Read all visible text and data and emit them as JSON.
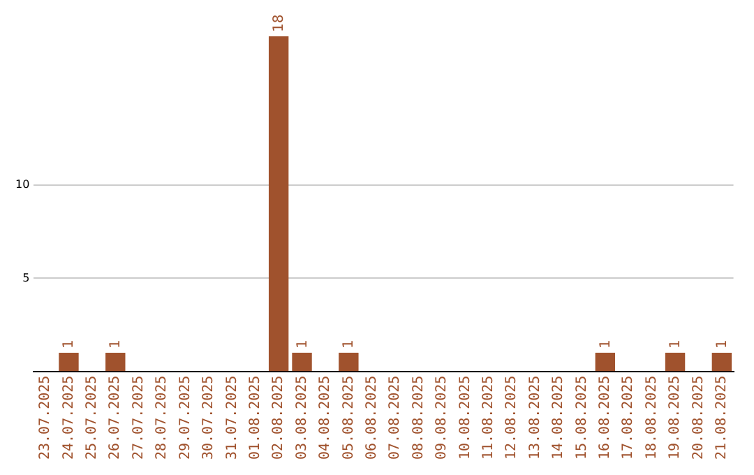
{
  "chart_data": {
    "type": "bar",
    "categories": [
      "23.07.2025",
      "24.07.2025",
      "25.07.2025",
      "26.07.2025",
      "27.07.2025",
      "28.07.2025",
      "29.07.2025",
      "30.07.2025",
      "31.07.2025",
      "01.08.2025",
      "02.08.2025",
      "03.08.2025",
      "04.08.2025",
      "05.08.2025",
      "06.08.2025",
      "07.08.2025",
      "08.08.2025",
      "09.08.2025",
      "10.08.2025",
      "11.08.2025",
      "12.08.2025",
      "13.08.2025",
      "14.08.2025",
      "15.08.2025",
      "16.08.2025",
      "17.08.2025",
      "18.08.2025",
      "19.08.2025",
      "20.08.2025",
      "21.08.2025"
    ],
    "values": [
      0,
      1,
      0,
      1,
      0,
      0,
      0,
      0,
      0,
      0,
      18,
      1,
      0,
      1,
      0,
      0,
      0,
      0,
      0,
      0,
      0,
      0,
      0,
      0,
      1,
      0,
      0,
      1,
      0,
      1
    ],
    "value_labels": [
      null,
      "1",
      null,
      "1",
      null,
      null,
      null,
      null,
      null,
      null,
      "18",
      "1",
      null,
      "1",
      null,
      null,
      null,
      null,
      null,
      null,
      null,
      null,
      null,
      null,
      "1",
      null,
      null,
      "1",
      null,
      "1"
    ],
    "color": "#a0522d",
    "ylim": [
      0,
      18
    ],
    "yticks": [
      5,
      10
    ],
    "grid": "y",
    "legend": false
  }
}
